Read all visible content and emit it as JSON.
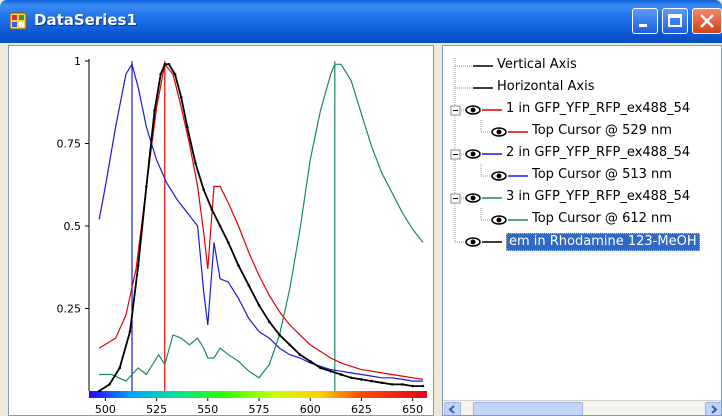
{
  "window": {
    "title": "DataSeries1"
  },
  "tree": {
    "items": [
      {
        "label": "Vertical Axis"
      },
      {
        "label": "Horizontal Axis"
      },
      {
        "label": "1 in GFP_YFP_RFP_ex488_54",
        "color": "#e00000"
      },
      {
        "label": "Top Cursor @ 529 nm",
        "color": "#e00000"
      },
      {
        "label": "2 in GFP_YFP_RFP_ex488_54",
        "color": "#1a1adc"
      },
      {
        "label": "Top Cursor @ 513 nm",
        "color": "#1a1adc"
      },
      {
        "label": "3 in GFP_YFP_RFP_ex488_54",
        "color": "#1a8a5a"
      },
      {
        "label": "Top Cursor @ 612 nm",
        "color": "#1a8a5a"
      },
      {
        "label": "em in Rhodamine 123-MeOH",
        "selected": true
      }
    ]
  },
  "chart_data": {
    "type": "line",
    "xlim": [
      492,
      657
    ],
    "ylim": [
      0,
      1
    ],
    "x_ticks": [
      "500",
      "525",
      "550",
      "575",
      "600",
      "625",
      "650"
    ],
    "y_ticks": [
      "1",
      "0.75",
      "0.5",
      "0.25"
    ],
    "cursors": [
      {
        "x": 529,
        "color": "#e00000"
      },
      {
        "x": 513,
        "color": "#1a1adc"
      },
      {
        "x": 612,
        "color": "#1a8a5a"
      }
    ],
    "series": [
      {
        "name": "1 in GFP_YFP_RFP_ex488_54",
        "color": "#e00000",
        "x": [
          497,
          505,
          510,
          515,
          520,
          525,
          529,
          533,
          537,
          541,
          545,
          548,
          550,
          553,
          556,
          560,
          565,
          570,
          575,
          580,
          585,
          590,
          595,
          600,
          605,
          610,
          615,
          620,
          625,
          630,
          635,
          640,
          645,
          650,
          655
        ],
        "y": [
          0.13,
          0.16,
          0.23,
          0.37,
          0.62,
          0.86,
          0.99,
          0.96,
          0.86,
          0.75,
          0.62,
          0.48,
          0.37,
          0.62,
          0.62,
          0.57,
          0.5,
          0.42,
          0.35,
          0.29,
          0.24,
          0.2,
          0.17,
          0.14,
          0.12,
          0.1,
          0.085,
          0.075,
          0.065,
          0.06,
          0.055,
          0.05,
          0.045,
          0.04,
          0.035
        ]
      },
      {
        "name": "2 in GFP_YFP_RFP_ex488_54",
        "color": "#1a1adc",
        "x": [
          497,
          500,
          505,
          510,
          513,
          516,
          520,
          525,
          530,
          535,
          540,
          545,
          548,
          550,
          553,
          556,
          560,
          565,
          570,
          575,
          580,
          585,
          590,
          595,
          600,
          605,
          610,
          615,
          620,
          625,
          630,
          635,
          640,
          645,
          650,
          655
        ],
        "y": [
          0.52,
          0.62,
          0.8,
          0.96,
          0.99,
          0.92,
          0.8,
          0.7,
          0.63,
          0.58,
          0.54,
          0.5,
          0.3,
          0.2,
          0.45,
          0.34,
          0.33,
          0.28,
          0.22,
          0.18,
          0.16,
          0.13,
          0.11,
          0.1,
          0.085,
          0.075,
          0.065,
          0.06,
          0.055,
          0.05,
          0.045,
          0.04,
          0.04,
          0.035,
          0.03,
          0.03
        ]
      },
      {
        "name": "3 in GFP_YFP_RFP_ex488_54",
        "color": "#1a8a5a",
        "x": [
          497,
          503,
          510,
          516,
          520,
          526,
          529,
          533,
          537,
          541,
          545,
          548,
          550,
          553,
          556,
          560,
          565,
          570,
          575,
          580,
          585,
          590,
          595,
          600,
          605,
          610,
          612,
          615,
          620,
          625,
          630,
          635,
          640,
          645,
          650,
          655
        ],
        "y": [
          0.05,
          0.05,
          0.03,
          0.07,
          0.05,
          0.11,
          0.08,
          0.17,
          0.16,
          0.14,
          0.16,
          0.13,
          0.1,
          0.1,
          0.13,
          0.11,
          0.09,
          0.06,
          0.04,
          0.08,
          0.17,
          0.31,
          0.49,
          0.7,
          0.85,
          0.96,
          0.99,
          0.99,
          0.94,
          0.84,
          0.74,
          0.66,
          0.6,
          0.54,
          0.49,
          0.45
        ]
      },
      {
        "name": "em in Rhodamine 123-MeOH",
        "color": "#000000",
        "x": [
          497,
          502,
          507,
          512,
          516,
          520,
          524,
          527,
          529,
          531,
          534,
          537,
          540,
          544,
          548,
          552,
          556,
          560,
          565,
          570,
          575,
          580,
          585,
          590,
          595,
          600,
          605,
          610,
          615,
          620,
          625,
          630,
          635,
          640,
          645,
          650,
          655
        ],
        "y": [
          0.0,
          0.02,
          0.07,
          0.18,
          0.38,
          0.62,
          0.85,
          0.96,
          0.99,
          0.99,
          0.96,
          0.89,
          0.8,
          0.69,
          0.61,
          0.55,
          0.5,
          0.45,
          0.38,
          0.32,
          0.26,
          0.21,
          0.17,
          0.14,
          0.11,
          0.09,
          0.07,
          0.06,
          0.05,
          0.04,
          0.035,
          0.03,
          0.025,
          0.02,
          0.02,
          0.015,
          0.015
        ]
      }
    ]
  }
}
